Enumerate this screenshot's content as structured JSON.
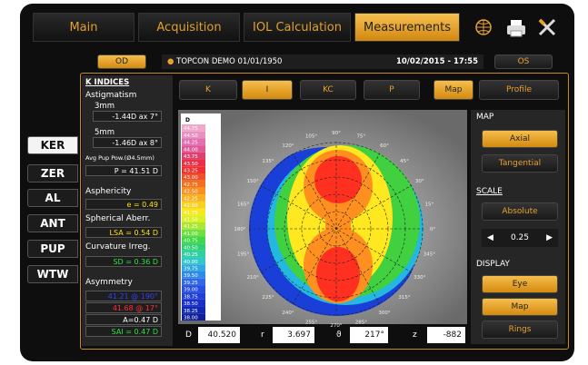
{
  "tabs": [
    "Main",
    "Acquisition",
    "IOL Calculation",
    "Measurements"
  ],
  "patient": {
    "eye_left": "OD",
    "name": "TOPCON DEMO 01/01/1950",
    "datetime": "10/02/2015 - 17:55",
    "eye_right": "OS"
  },
  "side_buttons": [
    "KER",
    "ZER",
    "AL",
    "ANT",
    "PUP",
    "WTW"
  ],
  "k_indices": {
    "title": "K INDICES",
    "astigmatism": "Astigmatism",
    "mm3": "3mm",
    "mm3_value": "-1.44D ax 7°",
    "mm5": "5mm",
    "mm5_value": "-1.46D ax 8°",
    "avg_pup": "Avg Pup Pow.(Ø4.5mm)",
    "avg_pup_value": "P = 41.51 D",
    "asphericity": "Asphericity",
    "asphericity_value": "e = 0.49",
    "spherical": "Spherical Aberr.",
    "spherical_value": "LSA = 0.54 D",
    "curvature": "Curvature Irreg.",
    "curvature_value": "SD = 0.36 D",
    "asymmetry": "Asymmetry",
    "asym_min": "41.21 @ 190°",
    "asym_max": "41.68 @ 17°",
    "asym_a": "A=0.47 D",
    "asym_sai": "SAI = 0.47 D"
  },
  "map_buttons": [
    "K",
    "I",
    "KC",
    "P"
  ],
  "view_buttons": [
    "Map",
    "Profile"
  ],
  "scale_unit": "D",
  "scale_values": [
    "44.75",
    "44.50",
    "44.25",
    "44.00",
    "43.75",
    "43.50",
    "43.25",
    "43.00",
    "42.75",
    "42.50",
    "42.25",
    "42.00",
    "41.75",
    "41.50",
    "41.25",
    "41.00",
    "40.75",
    "40.50",
    "40.25",
    "40.00",
    "39.75",
    "39.50",
    "39.25",
    "39.00",
    "38.75",
    "38.50",
    "38.25",
    "38.00"
  ],
  "angle_labels": [
    "0°",
    "15°",
    "30°",
    "45°",
    "60°",
    "75°",
    "90°",
    "105°",
    "120°",
    "135°",
    "150°",
    "165°",
    "180°",
    "195°",
    "210°",
    "225°",
    "240°",
    "255°",
    "270°",
    "285°",
    "300°",
    "315°",
    "330°",
    "345°"
  ],
  "readouts": [
    {
      "label": "D",
      "value": "40.520"
    },
    {
      "label": "r",
      "value": "3.697"
    },
    {
      "label": "ϑ",
      "value": "217°"
    },
    {
      "label": "z",
      "value": "-882"
    }
  ],
  "right_panel": {
    "map_title": "MAP",
    "axial": "Axial",
    "tangential": "Tangential",
    "scale_title": "SCALE",
    "absolute": "Absolute",
    "step": "0.25",
    "display_title": "DISPLAY",
    "eye": "Eye",
    "map": "Map",
    "rings": "Rings"
  }
}
